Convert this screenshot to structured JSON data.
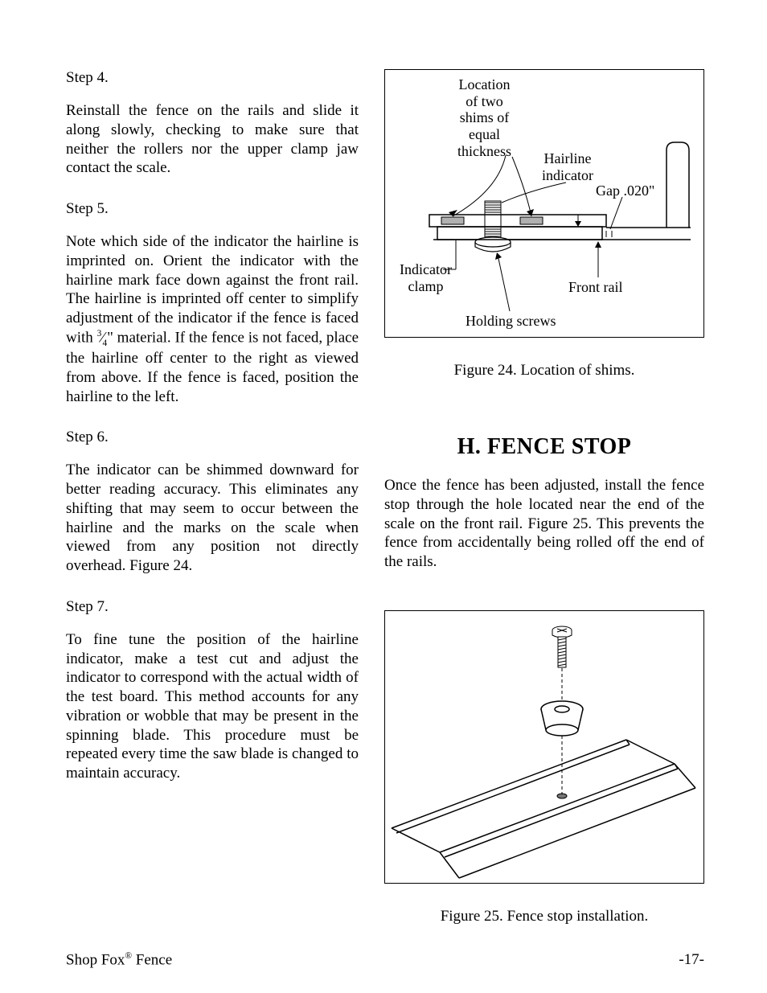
{
  "left": {
    "step4_head": "Step 4.",
    "step4_body": "Reinstall the fence on the rails and slide it along slowly, checking to make sure that neither the roll­ers nor the upper clamp jaw contact the scale.",
    "step5_head": "Step 5.",
    "step5_body_a": "Note which side of the indicator the hairline is imprinted on. Orient the indicator with the hairline mark face down against the front rail. The hairline is imprinted off center to simplify adjustment of the indicator if the fence is faced with ",
    "step5_frac_num": "3",
    "step5_frac_slash": "⁄",
    "step5_frac_den": "4",
    "step5_body_b": "\" material. If the fence is not faced, place the hairline off cen­ter to the right as viewed from above. If the fence is faced, position the hairline to the left.",
    "step6_head": "Step 6.",
    "step6_body": "The indicator can be shimmed downward for bet­ter reading accuracy. This eliminates any shifting that may seem to occur between the hairline and the marks on the scale when viewed from any position not directly overhead. Figure 24.",
    "step7_head": "Step 7.",
    "step7_body": "To fine tune the position of the hairline indicator, make a test cut and adjust the indicator to corre­spond with the actual width of the test board. This method accounts for any vibration or wobble that may be present in the spinning blade. This proce­dure must be repeated every time the saw blade is changed to maintain accuracy."
  },
  "right": {
    "fig24": {
      "caption": "Figure 24. Location of shims.",
      "labels": {
        "shims": "Location\nof two\nshims of\nequal\nthickness",
        "hairline": "Hairline\nindicator",
        "gap": "Gap .020\"",
        "clamp": "Indicator\nclamp",
        "front_rail": "Front rail",
        "screws": "Holding screws"
      }
    },
    "section_h_title": "H. FENCE STOP",
    "section_h_body": "Once the fence has been adjusted, install the fence stop through the hole located near the end of the scale on the front rail. Figure 25. This prevents the fence from accidentally being rolled off the end of the rails.",
    "fig25": {
      "caption": "Figure 25. Fence stop installation."
    }
  },
  "footer": {
    "left_a": "Shop Fox",
    "left_b": " Fence",
    "page": "-17-"
  }
}
